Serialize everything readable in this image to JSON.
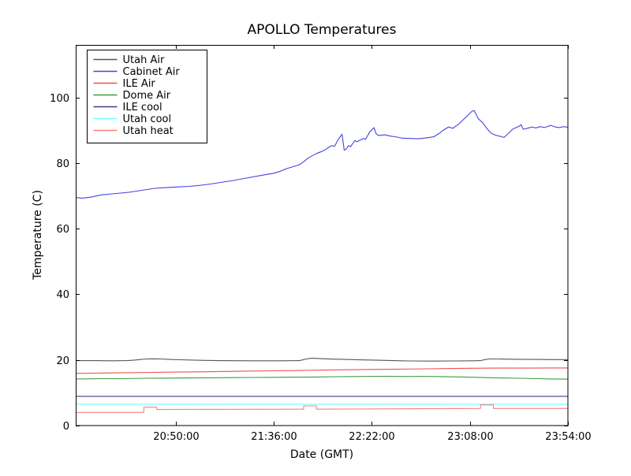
{
  "title": "APOLLO Temperatures",
  "chart_data": {
    "type": "line",
    "title": "APOLLO Temperatures",
    "xlabel": "Date (GMT)",
    "ylabel": "Temperature (C)",
    "x_unit": "minutes after 20:00:00 GMT",
    "xlim": [
      3,
      234
    ],
    "ylim": [
      0,
      116
    ],
    "grid": false,
    "legend_position": "upper left",
    "x_ticks": [
      {
        "value": 50,
        "label": "20:50:00"
      },
      {
        "value": 96,
        "label": "21:36:00"
      },
      {
        "value": 142,
        "label": "22:22:00"
      },
      {
        "value": 188,
        "label": "23:08:00"
      },
      {
        "value": 234,
        "label": "23:54:00"
      }
    ],
    "y_ticks": [
      {
        "value": 0,
        "label": "0"
      },
      {
        "value": 20,
        "label": "20"
      },
      {
        "value": 40,
        "label": "40"
      },
      {
        "value": 60,
        "label": "60"
      },
      {
        "value": 80,
        "label": "80"
      },
      {
        "value": 100,
        "label": "100"
      }
    ],
    "series": [
      {
        "name": "Utah Air",
        "color": "#555555",
        "points": [
          [
            3,
            19.8
          ],
          [
            12,
            19.78
          ],
          [
            20,
            19.75
          ],
          [
            27,
            19.8
          ],
          [
            30,
            19.9
          ],
          [
            33,
            20.1
          ],
          [
            36,
            20.3
          ],
          [
            40,
            20.35
          ],
          [
            43,
            20.3
          ],
          [
            46,
            20.2
          ],
          [
            52,
            20.05
          ],
          [
            60,
            19.9
          ],
          [
            70,
            19.8
          ],
          [
            85,
            19.75
          ],
          [
            100,
            19.75
          ],
          [
            108,
            19.8
          ],
          [
            110,
            20.1
          ],
          [
            112,
            20.4
          ],
          [
            114,
            20.5
          ],
          [
            118,
            20.4
          ],
          [
            124,
            20.25
          ],
          [
            130,
            20.15
          ],
          [
            138,
            20.0
          ],
          [
            145,
            19.9
          ],
          [
            152,
            19.8
          ],
          [
            160,
            19.7
          ],
          [
            170,
            19.65
          ],
          [
            180,
            19.7
          ],
          [
            190,
            19.75
          ],
          [
            193,
            19.8
          ],
          [
            195,
            20.1
          ],
          [
            197,
            20.3
          ],
          [
            200,
            20.3
          ],
          [
            205,
            20.25
          ],
          [
            210,
            20.2
          ],
          [
            220,
            20.15
          ],
          [
            227,
            20.1
          ],
          [
            234,
            20.1
          ]
        ]
      },
      {
        "name": "Cabinet Air",
        "color": "#4444dd",
        "points": [
          [
            3,
            69.5
          ],
          [
            6,
            69.3
          ],
          [
            10,
            69.6
          ],
          [
            15,
            70.3
          ],
          [
            20,
            70.6
          ],
          [
            28,
            71.1
          ],
          [
            34,
            71.7
          ],
          [
            40,
            72.3
          ],
          [
            45,
            72.5
          ],
          [
            50,
            72.7
          ],
          [
            56,
            72.9
          ],
          [
            60,
            73.1
          ],
          [
            65,
            73.5
          ],
          [
            71,
            74.1
          ],
          [
            77,
            74.7
          ],
          [
            83,
            75.4
          ],
          [
            89,
            76.1
          ],
          [
            96,
            76.9
          ],
          [
            99,
            77.5
          ],
          [
            102,
            78.3
          ],
          [
            105,
            78.9
          ],
          [
            108,
            79.5
          ],
          [
            110,
            80.4
          ],
          [
            112,
            81.5
          ],
          [
            114,
            82.2
          ],
          [
            116,
            82.9
          ],
          [
            118,
            83.4
          ],
          [
            120,
            84.0
          ],
          [
            122,
            84.9
          ],
          [
            123,
            85.3
          ],
          [
            124.5,
            85.1
          ],
          [
            126,
            87.0
          ],
          [
            127,
            87.9
          ],
          [
            128,
            88.8
          ],
          [
            129,
            83.9
          ],
          [
            130,
            84.3
          ],
          [
            131,
            85.3
          ],
          [
            132,
            85.0
          ],
          [
            134,
            86.9
          ],
          [
            135,
            86.5
          ],
          [
            138,
            87.5
          ],
          [
            139,
            87.2
          ],
          [
            141,
            89.5
          ],
          [
            142,
            90.1
          ],
          [
            143,
            90.8
          ],
          [
            144,
            88.9
          ],
          [
            145,
            88.4
          ],
          [
            148,
            88.6
          ],
          [
            151,
            88.2
          ],
          [
            154,
            87.9
          ],
          [
            156,
            87.6
          ],
          [
            160,
            87.5
          ],
          [
            164,
            87.4
          ],
          [
            168,
            87.7
          ],
          [
            171,
            88.0
          ],
          [
            174,
            89.2
          ],
          [
            175,
            89.8
          ],
          [
            178,
            91.0
          ],
          [
            180,
            90.6
          ],
          [
            183,
            92.0
          ],
          [
            186,
            93.9
          ],
          [
            189,
            95.8
          ],
          [
            190,
            96.0
          ],
          [
            192,
            93.5
          ],
          [
            194,
            92.3
          ],
          [
            196,
            90.5
          ],
          [
            198,
            89.1
          ],
          [
            200,
            88.5
          ],
          [
            202,
            88.2
          ],
          [
            204,
            87.8
          ],
          [
            206,
            89.0
          ],
          [
            208,
            90.3
          ],
          [
            211,
            91.2
          ],
          [
            212,
            91.7
          ],
          [
            213,
            90.3
          ],
          [
            215,
            90.6
          ],
          [
            217,
            91.0
          ],
          [
            219,
            90.7
          ],
          [
            221,
            91.1
          ],
          [
            223,
            90.8
          ],
          [
            226,
            91.5
          ],
          [
            228,
            91.0
          ],
          [
            230,
            90.8
          ],
          [
            232,
            91.1
          ],
          [
            234,
            90.9
          ]
        ]
      },
      {
        "name": "ILE Air",
        "color": "#ef4e4e",
        "points": [
          [
            3,
            15.9
          ],
          [
            20,
            16.05
          ],
          [
            40,
            16.2
          ],
          [
            50,
            16.3
          ],
          [
            65,
            16.4
          ],
          [
            80,
            16.55
          ],
          [
            96,
            16.7
          ],
          [
            110,
            16.8
          ],
          [
            120,
            16.9
          ],
          [
            130,
            17.0
          ],
          [
            142,
            17.1
          ],
          [
            155,
            17.2
          ],
          [
            168,
            17.3
          ],
          [
            180,
            17.38
          ],
          [
            188,
            17.45
          ],
          [
            200,
            17.5
          ],
          [
            215,
            17.5
          ],
          [
            225,
            17.55
          ],
          [
            234,
            17.55
          ]
        ]
      },
      {
        "name": "Dome Air",
        "color": "#3d9a3d",
        "points": [
          [
            3,
            14.2
          ],
          [
            15,
            14.3
          ],
          [
            25,
            14.3
          ],
          [
            35,
            14.4
          ],
          [
            45,
            14.45
          ],
          [
            55,
            14.5
          ],
          [
            65,
            14.55
          ],
          [
            75,
            14.6
          ],
          [
            85,
            14.65
          ],
          [
            96,
            14.7
          ],
          [
            105,
            14.75
          ],
          [
            115,
            14.8
          ],
          [
            125,
            14.9
          ],
          [
            135,
            14.95
          ],
          [
            142,
            15.0
          ],
          [
            150,
            15.0
          ],
          [
            158,
            14.95
          ],
          [
            165,
            15.0
          ],
          [
            172,
            14.95
          ],
          [
            180,
            14.85
          ],
          [
            188,
            14.75
          ],
          [
            196,
            14.6
          ],
          [
            204,
            14.5
          ],
          [
            212,
            14.4
          ],
          [
            220,
            14.3
          ],
          [
            227,
            14.2
          ],
          [
            234,
            14.15
          ]
        ]
      },
      {
        "name": "ILE cool",
        "color": "#3d3d85",
        "points": [
          [
            3,
            8.9
          ],
          [
            234,
            8.9
          ]
        ]
      },
      {
        "name": "Utah cool",
        "color": "#70ffff",
        "points": [
          [
            3,
            6.5
          ],
          [
            234,
            6.5
          ]
        ]
      },
      {
        "name": "Utah heat",
        "color": "#f98080",
        "points": [
          [
            3,
            4.0
          ],
          [
            35,
            4.0
          ],
          [
            35,
            5.6
          ],
          [
            41,
            5.6
          ],
          [
            41,
            4.9
          ],
          [
            70,
            4.95
          ],
          [
            110,
            5.0
          ],
          [
            110,
            6.0
          ],
          [
            116,
            6.0
          ],
          [
            116,
            5.0
          ],
          [
            150,
            5.1
          ],
          [
            193,
            5.2
          ],
          [
            193,
            6.3
          ],
          [
            199,
            6.3
          ],
          [
            199,
            5.2
          ],
          [
            234,
            5.2
          ]
        ]
      }
    ]
  }
}
